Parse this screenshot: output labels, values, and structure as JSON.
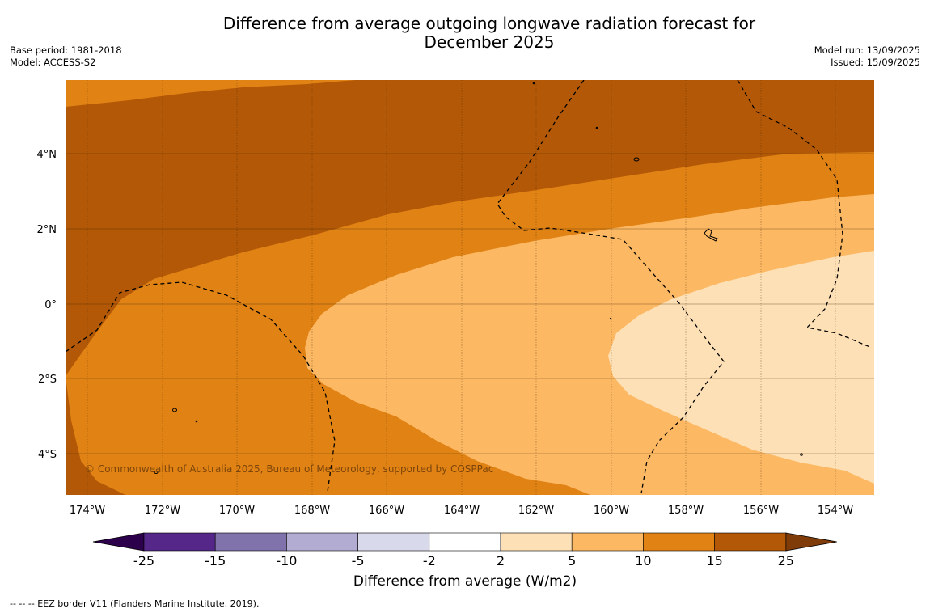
{
  "title_line1": "Difference from average outgoing longwave radiation forecast for",
  "title_line2": "December 2025",
  "base_period": "Base period: 1981-2018",
  "model": "Model: ACCESS-S2",
  "model_run": "Model run: 13/09/2025",
  "issued": "Issued: 15/09/2025",
  "copyright": "© Commonwealth of Australia 2025, Bureau of Meteorology, supported by COSPPac",
  "colorbar": {
    "label": "Difference from average (W/m2)",
    "ticks": [
      "-25",
      "-15",
      "-10",
      "-5",
      "-2",
      "2",
      "5",
      "10",
      "15",
      "25"
    ],
    "colors": [
      "#542788",
      "#8073ac",
      "#b2abd2",
      "#d8daeb",
      "#ffffff",
      "#fee0b6",
      "#fdb863",
      "#e08214",
      "#b35806"
    ],
    "extend_low_color": "#2d004b",
    "extend_high_color": "#7f3b08"
  },
  "axes": {
    "x_ticks": [
      "174°W",
      "172°W",
      "170°W",
      "168°W",
      "166°W",
      "164°W",
      "162°W",
      "160°W",
      "158°W",
      "156°W",
      "154°W"
    ],
    "y_ticks": [
      "4°N",
      "2°N",
      "0°",
      "2°S",
      "4°S"
    ]
  },
  "footer": "--  --  -- EEZ border V11 (Flanders Marine Institute, 2019)."
}
